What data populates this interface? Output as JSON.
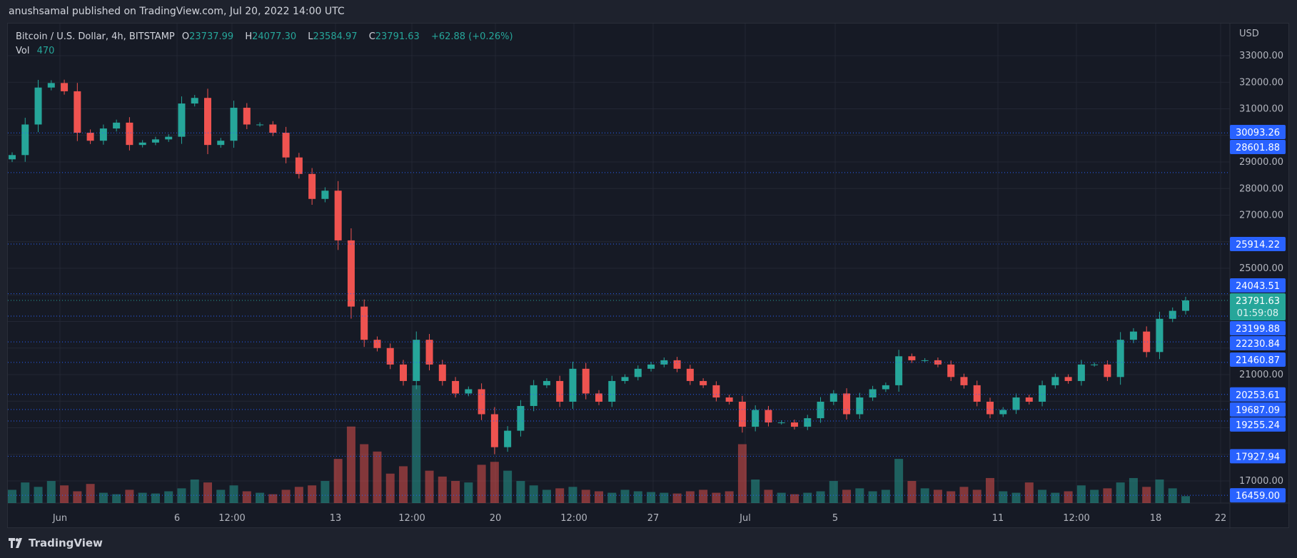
{
  "header": {
    "published": "anushsamal published on TradingView.com, Jul 20, 2022 14:00 UTC"
  },
  "legend": {
    "symbol": "Bitcoin / U.S. Dollar, 4h, BITSTAMP",
    "o_label": "O",
    "o": "23737.99",
    "h_label": "H",
    "h": "24077.30",
    "l_label": "L",
    "l": "23584.97",
    "c_label": "C",
    "c": "23791.63",
    "change": "+62.88 (+0.26%)",
    "vol_label": "Vol",
    "vol": "470"
  },
  "footer": {
    "brand": "TradingView",
    "logo_icon": "tradingview-logo-icon"
  },
  "colors": {
    "up": "#26a69a",
    "down": "#ef5350",
    "level": "#2962ff",
    "background": "#161a25",
    "grid": "#232734"
  },
  "chart_data": {
    "type": "candlestick",
    "currency_label": "USD",
    "ylim": [
      16000,
      33500
    ],
    "grid": true,
    "y_ticks": [
      "33000.00",
      "32000.00",
      "31000.00",
      "29000.00",
      "28000.00",
      "27000.00",
      "25000.00",
      "21000.00",
      "17000.00"
    ],
    "x_ticks": [
      "Jun",
      "6",
      "12:00",
      "13",
      "12:00",
      "20",
      "12:00",
      "27",
      "Jul",
      "5",
      "11",
      "12:00",
      "18",
      "22"
    ],
    "first_open": 29100,
    "closes": [
      29260,
      30410,
      31800,
      31970,
      31660,
      30100,
      29800,
      30260,
      30480,
      29640,
      29730,
      29850,
      29950,
      31200,
      31410,
      29640,
      29800,
      31040,
      30410,
      30410,
      30100,
      29170,
      28550,
      27610,
      27920,
      26050,
      23560,
      22310,
      22000,
      21380,
      20760,
      22310,
      21380,
      20760,
      20290,
      20450,
      19510,
      18270,
      18890,
      19820,
      20600,
      20760,
      19980,
      21220,
      20290,
      19980,
      20760,
      20910,
      21220,
      21380,
      21540,
      21220,
      20760,
      20600,
      20140,
      19980,
      19040,
      19670,
      19200,
      19200,
      19040,
      19360,
      19980,
      20290,
      19510,
      20140,
      20450,
      20600,
      21690,
      21540,
      21540,
      21380,
      20910,
      20600,
      19980,
      19510,
      19670,
      20140,
      19980,
      20600,
      20910,
      20760,
      21380,
      21380,
      20910,
      22310,
      22620,
      21850,
      23100,
      23400,
      23791.63
    ],
    "volumes": [
      900,
      1400,
      1100,
      1500,
      1200,
      800,
      1300,
      700,
      600,
      900,
      700,
      650,
      800,
      1000,
      1600,
      1400,
      900,
      1200,
      800,
      700,
      600,
      900,
      1100,
      1200,
      1500,
      3000,
      5200,
      4000,
      3500,
      2000,
      2500,
      8000,
      2200,
      1800,
      1500,
      1400,
      2600,
      2800,
      2200,
      1500,
      1200,
      900,
      1000,
      1100,
      900,
      800,
      700,
      900,
      800,
      750,
      700,
      650,
      800,
      900,
      700,
      800,
      4000,
      1600,
      900,
      700,
      600,
      700,
      800,
      1500,
      900,
      1000,
      800,
      900,
      3000,
      1500,
      1000,
      900,
      800,
      1100,
      900,
      1700,
      800,
      700,
      1400,
      900,
      700,
      800,
      1200,
      900,
      1000,
      1400,
      1700,
      1100,
      1600,
      1000,
      470
    ],
    "levels": [
      30093.26,
      28601.88,
      25914.22,
      24043.51,
      23199.88,
      22230.84,
      21460.87,
      20253.61,
      19687.09,
      19255.24,
      17927.94,
      16459.0
    ],
    "level_labels": [
      "30093.26",
      "28601.88",
      "25914.22",
      "24043.51",
      "23199.88",
      "22230.84",
      "21460.87",
      "20253.61",
      "19687.09",
      "19255.24",
      "17927.94",
      "16459.00"
    ],
    "last_price": 23791.63,
    "last_price_label": "23791.63",
    "countdown": "01:59:08"
  }
}
